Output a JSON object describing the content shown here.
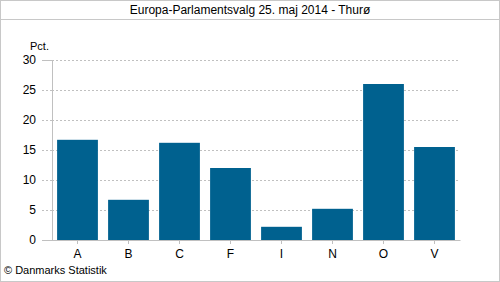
{
  "chart_data": {
    "type": "bar",
    "title": "Europa-Parlamentsvalg 25. maj 2014 - Thurø",
    "y_label": "Pct.",
    "annotations": [
      "© Danmarks Statistik"
    ],
    "categories": [
      "A",
      "B",
      "C",
      "F",
      "I",
      "N",
      "O",
      "V"
    ],
    "values": [
      16.7,
      6.7,
      16.2,
      12.0,
      2.2,
      5.2,
      26.0,
      15.5
    ],
    "color": "#00618f",
    "ylim": [
      0,
      30
    ],
    "yticks": [
      0,
      5,
      10,
      15,
      20,
      25,
      30
    ],
    "grid": true
  }
}
